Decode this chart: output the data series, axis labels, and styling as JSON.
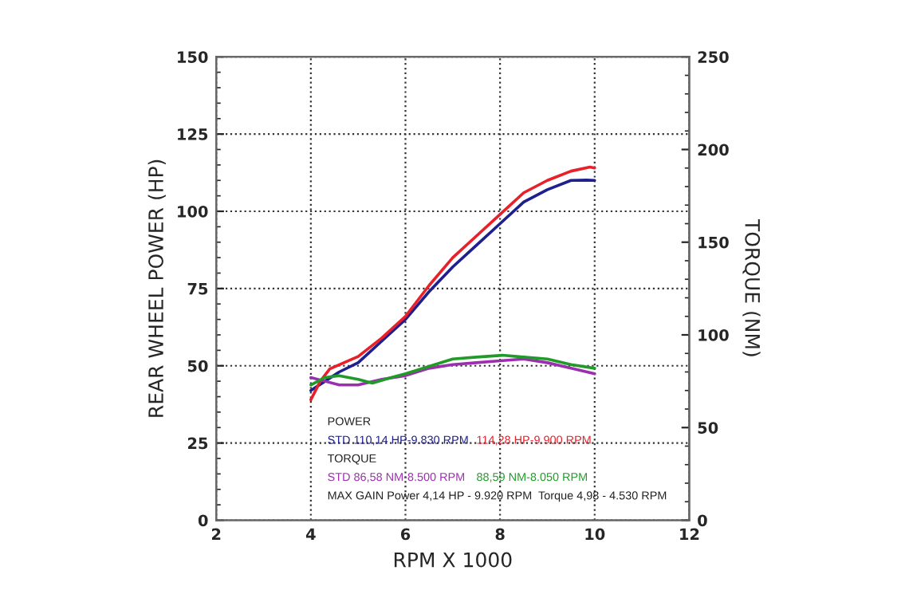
{
  "chart_data": {
    "type": "line",
    "xlabel": "RPM X 1000",
    "ylabel": "REAR WHEEL POWER (HP)",
    "y2label": "TORQUE (NM)",
    "xlim": [
      2,
      12
    ],
    "xticks": [
      2,
      4,
      6,
      8,
      10,
      12
    ],
    "ylim": [
      0,
      150
    ],
    "yticks": [
      0,
      25,
      50,
      75,
      100,
      125,
      150
    ],
    "y2lim": [
      0,
      250
    ],
    "y2ticks": [
      0,
      50,
      100,
      150,
      200,
      250
    ],
    "grid": true,
    "line_style": "solid",
    "marker": "none",
    "series": [
      {
        "name": "STD 110,14 HP-9.830 RPM",
        "color": "#1f1f8f",
        "x": [
          4.0,
          4.3,
          4.6,
          5.0,
          5.5,
          6.0,
          6.5,
          7.0,
          7.5,
          8.0,
          8.5,
          9.0,
          9.5,
          9.83,
          10.0
        ],
        "values": [
          42,
          45,
          48,
          51,
          58,
          65,
          74,
          82,
          89,
          96,
          103,
          107,
          110,
          110.1,
          110
        ]
      },
      {
        "name": "114,28 HP-9.900 RPM",
        "color": "#e8202a",
        "x": [
          4.0,
          4.2,
          4.4,
          4.7,
          5.0,
          5.5,
          6.0,
          6.5,
          7.0,
          7.5,
          8.0,
          8.5,
          9.0,
          9.5,
          9.9,
          10.0
        ],
        "values": [
          39,
          45,
          49,
          51,
          53,
          59,
          66,
          76,
          85,
          92,
          99,
          106,
          110,
          113,
          114.3,
          114
        ]
      },
      {
        "name": "STD 86,58 NM-8.500 RPM",
        "color": "#9b2fae",
        "axis": "y2",
        "x": [
          4.0,
          4.3,
          4.6,
          5.0,
          5.5,
          6.0,
          6.5,
          7.0,
          7.5,
          8.0,
          8.5,
          9.0,
          9.5,
          10.0
        ],
        "values": [
          77,
          75,
          73,
          73,
          76,
          78,
          82,
          84,
          85,
          86,
          87,
          85,
          82,
          79
        ]
      },
      {
        "name": "88,59 NM-8.050 RPM",
        "color": "#229a2a",
        "axis": "y2",
        "x": [
          4.0,
          4.3,
          4.6,
          5.0,
          5.3,
          5.7,
          6.0,
          6.5,
          7.0,
          7.5,
          8.05,
          8.5,
          9.0,
          9.5,
          10.0
        ],
        "values": [
          73,
          77,
          78,
          76,
          74,
          77,
          79,
          83,
          87,
          88,
          89,
          88,
          87,
          84,
          82
        ]
      }
    ],
    "annotations": [
      "POWER",
      "TORQUE",
      "MAX GAIN Power 4,14 HP - 9.920 RPM  Torque 4,98 - 4.530 RPM"
    ]
  }
}
